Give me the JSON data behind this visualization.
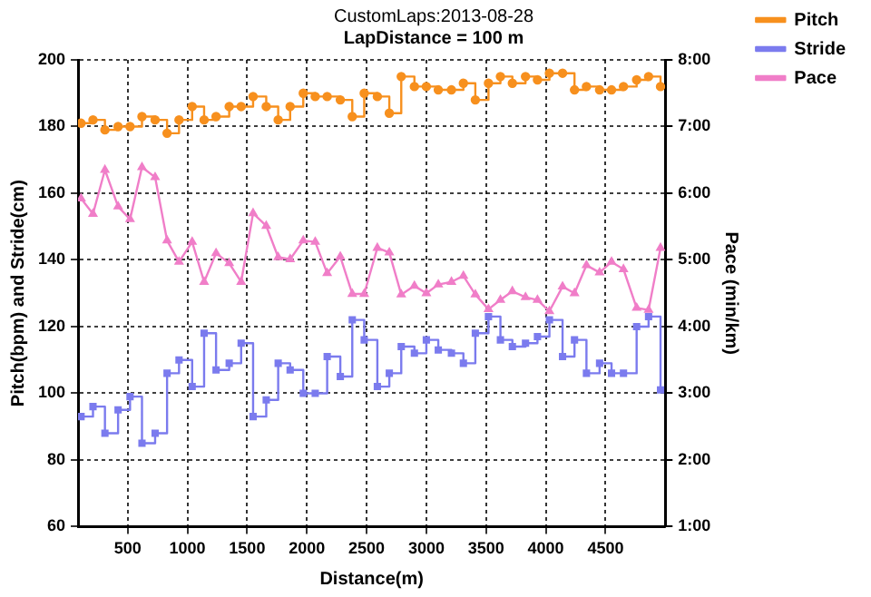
{
  "chart_data": {
    "type": "step",
    "title": "CustomLaps:2013-08-28",
    "subtitle": "LapDistance = 100 m",
    "xlabel": "Distance(m)",
    "ylabel": "Pitch(bpm) and Stride(cm)",
    "y2label": "Pace (min/km)",
    "x": [
      110,
      210,
      310,
      420,
      520,
      620,
      730,
      830,
      930,
      1040,
      1140,
      1240,
      1350,
      1450,
      1550,
      1660,
      1760,
      1860,
      1970,
      2070,
      2170,
      2280,
      2380,
      2480,
      2590,
      2690,
      2790,
      2900,
      3000,
      3100,
      3210,
      3310,
      3410,
      3520,
      3620,
      3720,
      3830,
      3930,
      4030,
      4140,
      4240,
      4340,
      4450,
      4550,
      4650,
      4760,
      4860,
      4960
    ],
    "series": [
      {
        "name": "Pitch",
        "color": "#f7901e",
        "marker": "circle",
        "values": [
          181,
          182,
          179,
          180,
          180,
          183,
          182,
          178,
          182,
          186,
          182,
          183,
          186,
          186,
          189,
          186,
          182,
          186,
          190,
          189,
          189,
          188,
          183,
          190,
          189,
          184,
          195,
          192,
          192,
          191,
          191,
          193,
          188,
          193,
          195,
          193,
          195,
          194,
          196,
          196,
          191,
          192,
          191,
          191,
          192,
          194,
          195,
          192
        ]
      },
      {
        "name": "Stride",
        "color": "#7b7bee",
        "marker": "square",
        "values": [
          93,
          96,
          88,
          95,
          99,
          85,
          88,
          106,
          110,
          102,
          118,
          107,
          109,
          115,
          93,
          98,
          109,
          107,
          100,
          100,
          111,
          105,
          122,
          116,
          102,
          106,
          114,
          112,
          116,
          113,
          112,
          109,
          118,
          123,
          116,
          114,
          115,
          117,
          122,
          111,
          116,
          106,
          109,
          106,
          106,
          120,
          123,
          101
        ]
      },
      {
        "name": "Pace",
        "type": "line",
        "axis": "y2",
        "color": "#f07ec8",
        "marker": "triangle",
        "values": [
          5.92,
          5.69,
          6.35,
          5.8,
          5.61,
          6.39,
          6.24,
          5.29,
          4.97,
          5.27,
          4.67,
          5.1,
          4.95,
          4.67,
          5.7,
          5.51,
          5.04,
          5.01,
          5.29,
          5.27,
          4.8,
          5.05,
          4.49,
          4.49,
          5.18,
          5.11,
          4.48,
          4.61,
          4.5,
          4.63,
          4.67,
          4.76,
          4.48,
          4.26,
          4.4,
          4.53,
          4.44,
          4.4,
          4.23,
          4.6,
          4.5,
          4.92,
          4.81,
          4.97,
          4.86,
          4.28,
          4.25,
          5.18
        ]
      }
    ],
    "xlim": [
      85,
      5000
    ],
    "xticks": [
      500,
      1000,
      1500,
      2000,
      2500,
      3000,
      3500,
      4000,
      4500
    ],
    "ylim": [
      60,
      200
    ],
    "yticks": [
      60,
      80,
      100,
      120,
      140,
      160,
      180,
      200
    ],
    "y2lim": [
      1,
      8
    ],
    "y2ticks": [
      {
        "value": 1,
        "label": "1:00"
      },
      {
        "value": 2,
        "label": "2:00"
      },
      {
        "value": 3,
        "label": "3:00"
      },
      {
        "value": 4,
        "label": "4:00"
      },
      {
        "value": 5,
        "label": "5:00"
      },
      {
        "value": 6,
        "label": "6:00"
      },
      {
        "value": 7,
        "label": "7:00"
      },
      {
        "value": 8,
        "label": "8:00"
      }
    ],
    "grid": true,
    "legend": "right"
  }
}
